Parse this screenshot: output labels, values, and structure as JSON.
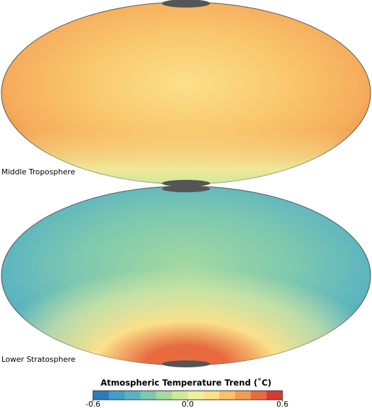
{
  "maps": [
    {
      "label": "Middle Troposphere"
    },
    {
      "label": "Lower Stratosphere"
    }
  ],
  "colorbar": {
    "title": "Atmospheric Temperature Trend (˚C)",
    "lim": [
      -0.6,
      0.6
    ],
    "ticks": [
      -0.6,
      {
        "value": 0,
        "label": "0.0"
      },
      0.6
    ],
    "colors": [
      "#2c7bb6",
      "#3f9fc4",
      "#5ab4c0",
      "#7dc8b0",
      "#a5d9a0",
      "#cde99a",
      "#eef0a0",
      "#fbe08a",
      "#f9bf6a",
      "#f29b52",
      "#e86b3f",
      "#d63b32"
    ]
  }
}
